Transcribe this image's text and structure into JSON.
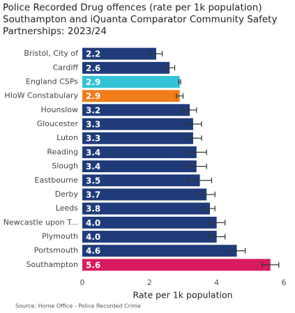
{
  "chart_data": {
    "type": "bar",
    "orientation": "horizontal",
    "title": [
      "Police Recorded Drug offences (rate per 1k population)",
      "Southampton and iQuanta Comparator Community Safety",
      "Partnerships: 2023/24"
    ],
    "x_label": "Rate per 1k population",
    "source": "Source: Home Office - Police Recorded Crime",
    "categories": [
      "Bristol, City of",
      "Cardiff",
      "England CSPs",
      "HIoW Constabulary",
      "Hounslow",
      "Gloucester",
      "Luton",
      "Reading",
      "Slough",
      "Eastbourne",
      "Derby",
      "Leeds",
      "Newcastle upon T...",
      "Plymouth",
      "Portsmouth",
      "Southampton"
    ],
    "values": [
      2.2,
      2.6,
      2.9,
      2.9,
      3.2,
      3.3,
      3.3,
      3.4,
      3.4,
      3.5,
      3.7,
      3.8,
      4.0,
      4.0,
      4.6,
      5.6
    ],
    "value_labels": [
      "2.2",
      "2.6",
      "2.9",
      "2.9",
      "3.2",
      "3.3",
      "3.3",
      "3.4",
      "3.4",
      "3.5",
      "3.7",
      "3.8",
      "4.0",
      "4.0",
      "4.6",
      "5.6"
    ],
    "errors": [
      0.18,
      0.15,
      0.03,
      0.1,
      0.2,
      0.25,
      0.25,
      0.3,
      0.3,
      0.35,
      0.25,
      0.15,
      0.25,
      0.25,
      0.25,
      0.25
    ],
    "colors": [
      "#203b7a",
      "#203b7a",
      "#33c3d6",
      "#f07c1a",
      "#203b7a",
      "#203b7a",
      "#203b7a",
      "#203b7a",
      "#203b7a",
      "#203b7a",
      "#203b7a",
      "#203b7a",
      "#203b7a",
      "#203b7a",
      "#203b7a",
      "#d81b5e"
    ],
    "error_color": "#333333",
    "xlim": [
      0,
      6
    ],
    "xticks": [
      0,
      2,
      4,
      6
    ],
    "grid": false
  }
}
